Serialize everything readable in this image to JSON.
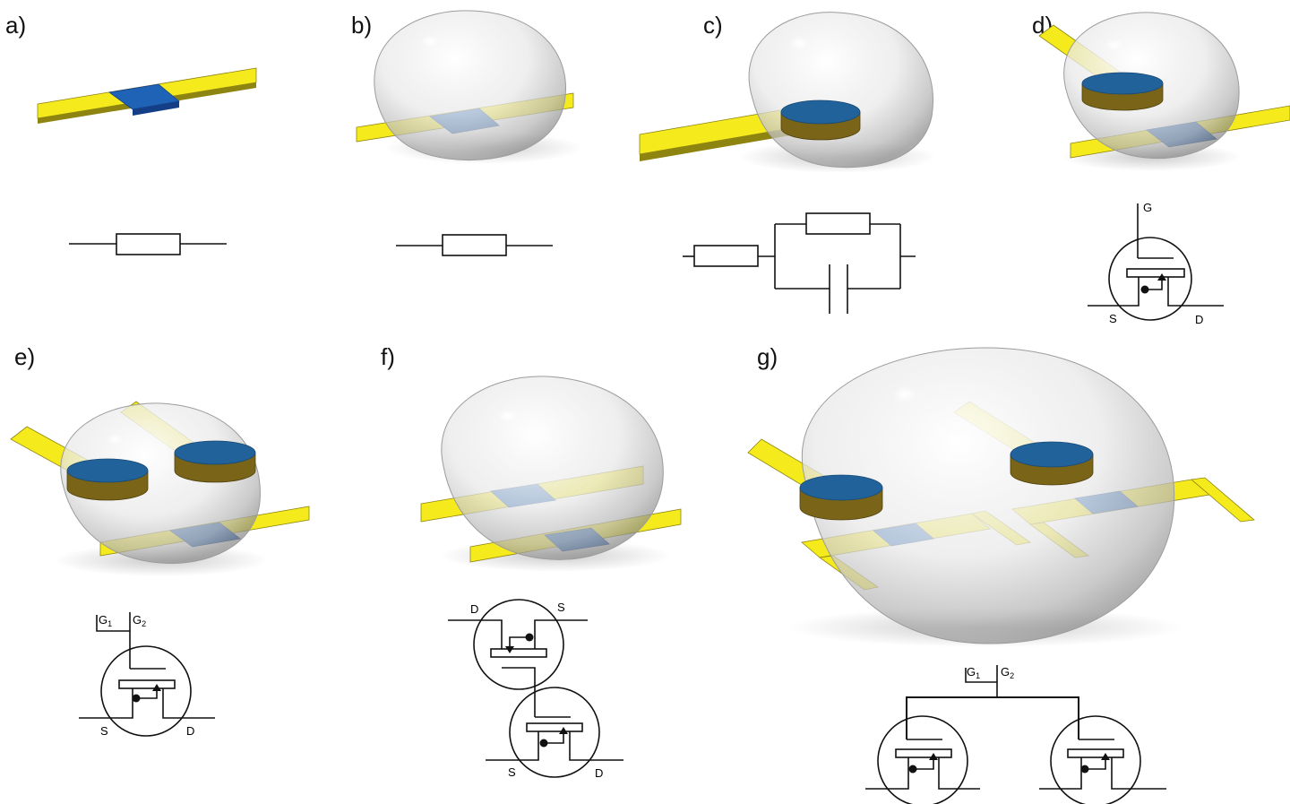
{
  "colors": {
    "electrode": "#f5ea1c",
    "electrode_side": "#8e8410",
    "semiconductor": "#1f63b6",
    "semiconductor_dark": "#143f86",
    "gate_top": "#22629a",
    "gate_side": "#7a6418",
    "droplet": "#e8e8e8",
    "line": "#111111"
  },
  "panels": {
    "a": {
      "label": "a)"
    },
    "b": {
      "label": "b)"
    },
    "c": {
      "label": "c)"
    },
    "d": {
      "label": "d)",
      "gate": "G",
      "source": "S",
      "drain": "D"
    },
    "e": {
      "label": "e)",
      "gate1": "G",
      "gate1_sub": "1",
      "gate2": "G",
      "gate2_sub": "2",
      "source": "S",
      "drain": "D"
    },
    "f": {
      "label": "f)",
      "drain_top": "D",
      "source_top": "S",
      "source": "S",
      "drain": "D"
    },
    "g": {
      "label": "g)",
      "gate1": "G",
      "gate1_sub": "1",
      "gate2": "G",
      "gate2_sub": "2"
    }
  }
}
